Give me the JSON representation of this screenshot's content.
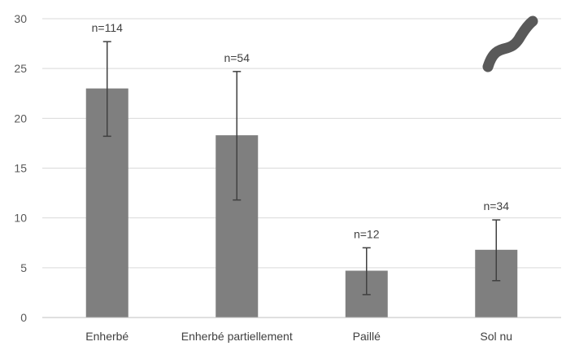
{
  "chart_data": {
    "type": "bar",
    "title": "",
    "xlabel": "",
    "ylabel": "",
    "ylim": [
      0,
      30
    ],
    "yticks": [
      0,
      5,
      10,
      15,
      20,
      25,
      30
    ],
    "grid": true,
    "categories": [
      "Enherbé",
      "Enherbé partiellement",
      "Paillé",
      "Sol nu"
    ],
    "values": [
      23.0,
      18.3,
      4.7,
      6.8
    ],
    "error_low": [
      18.2,
      11.8,
      2.3,
      3.7
    ],
    "error_high": [
      27.7,
      24.7,
      7.0,
      9.8
    ],
    "annotations": [
      "n=114",
      "n=54",
      "n=12",
      "n=34"
    ],
    "bar_color": "#7f7f7f",
    "decoration": "worm-icon"
  }
}
